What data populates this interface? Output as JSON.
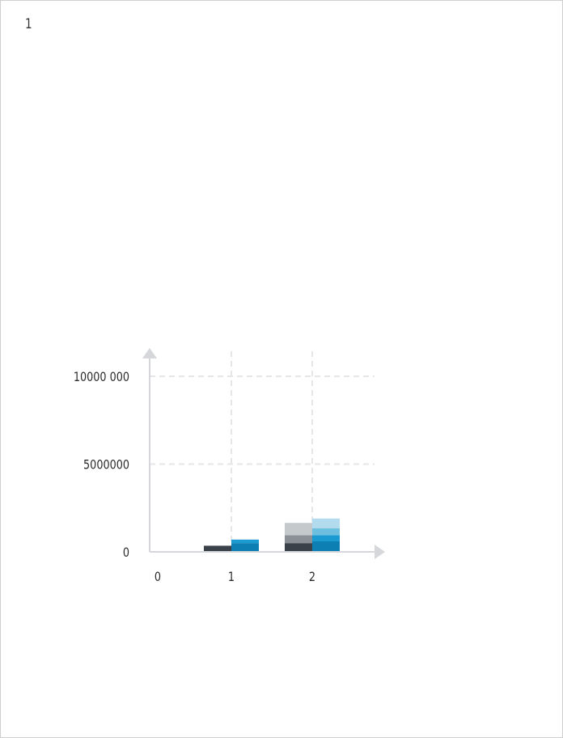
{
  "page": {
    "number": "1"
  },
  "chart_data": {
    "type": "bar",
    "stacked": true,
    "x_ticks": [
      "0",
      "1",
      "2"
    ],
    "y_ticks": [
      {
        "value": 0,
        "label": "0"
      },
      {
        "value": 5000000,
        "label": "5000000"
      },
      {
        "value": 10000000,
        "label": "10000 000"
      }
    ],
    "xlim": [
      0,
      2.8
    ],
    "ylim": [
      0,
      11500000
    ],
    "grid": true,
    "title": "",
    "xlabel": "",
    "ylabel": "",
    "series_groups": [
      {
        "group": "left",
        "bars": [
          {
            "x": 1,
            "segments": [
              {
                "value": 350000,
                "color": "#3a4148"
              }
            ]
          },
          {
            "x": 2,
            "segments": [
              {
                "value": 500000,
                "color": "#3a4148"
              },
              {
                "value": 450000,
                "color": "#8a9096"
              },
              {
                "value": 700000,
                "color": "#c6c9cc"
              }
            ]
          }
        ]
      },
      {
        "group": "right",
        "bars": [
          {
            "x": 1,
            "segments": [
              {
                "value": 500000,
                "color": "#0d7fb2"
              },
              {
                "value": 200000,
                "color": "#1a9ad1"
              }
            ]
          },
          {
            "x": 2,
            "segments": [
              {
                "value": 600000,
                "color": "#0d7fb2"
              },
              {
                "value": 350000,
                "color": "#1a9ad1"
              },
              {
                "value": 400000,
                "color": "#6dbfe0"
              },
              {
                "value": 550000,
                "color": "#b2dbee"
              }
            ]
          }
        ]
      }
    ],
    "colors": {
      "axis": "#d5d7da",
      "grid": "#e6e6e6"
    }
  }
}
